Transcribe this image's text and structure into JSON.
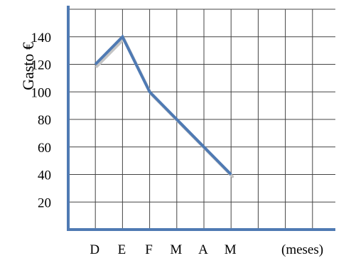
{
  "chart_data": {
    "type": "line",
    "categories": [
      "D",
      "E",
      "F",
      "M",
      "A",
      "M"
    ],
    "values": [
      120,
      140,
      100,
      80,
      60,
      40
    ],
    "ylabel": "Gasto €",
    "xlabel": "(meses)",
    "yticks": [
      20,
      40,
      60,
      80,
      100,
      120,
      140
    ],
    "ylim": [
      0,
      160
    ],
    "grid": true,
    "legend": "none",
    "colors": {
      "line": "#4f7ab3",
      "shadow": "#c4c4c4",
      "axis": "#4f7ab3",
      "grid": "#444444"
    }
  }
}
